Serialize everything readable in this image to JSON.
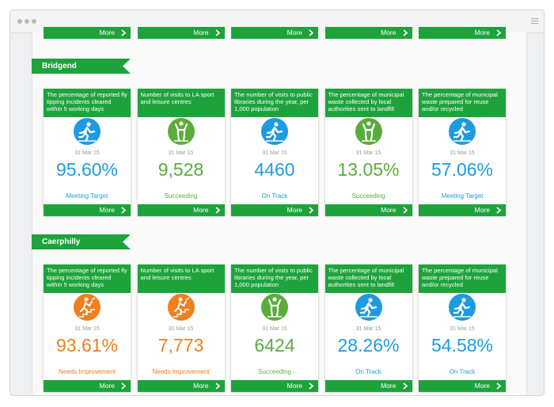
{
  "top_row_more": [
    "More",
    "More",
    "More",
    "More",
    "More"
  ],
  "sections": [
    {
      "name": "Bridgend",
      "cards": [
        {
          "title": "The percentage of reported fly tipping incidents cleared within 5 working days",
          "date": "31 Mar 15",
          "value": "95.60%",
          "status": "Meeting Target",
          "color": "#1e9be0",
          "more": "More"
        },
        {
          "title": "Number of visits to LA sport and leisure centres",
          "date": "31 Mar 15",
          "value": "9,528",
          "status": "Succeeding",
          "color": "#5cab3c",
          "more": "More"
        },
        {
          "title": "The number of visits to public libraries during the year, per 1,000 population",
          "date": "31 Mar 15",
          "value": "4460",
          "status": "On Track",
          "color": "#1e9be0",
          "more": "More"
        },
        {
          "title": "The percentage of municipal waste collected by local authorities sent to landfill",
          "date": "31 Mar 15",
          "value": "13.05%",
          "status": "Succeeding",
          "color": "#5cab3c",
          "more": "More"
        },
        {
          "title": "The percentage of municipal waste prepared for reuse and/or recycled",
          "date": "31 Mar 15",
          "value": "57.06%",
          "status": "Meeting Target",
          "color": "#1e9be0",
          "more": "More"
        }
      ]
    },
    {
      "name": "Caerphilly",
      "cards": [
        {
          "title": "The percentage of reported fly tipping incidents cleared within 5 working days",
          "date": "31 Mar 15",
          "value": "93.61%",
          "status": "Needs Improvement",
          "color": "#f07f1e",
          "more": "More"
        },
        {
          "title": "Number of visits to LA sport and leisure centres",
          "date": "31 Mar 15",
          "value": "7,773",
          "status": "Needs Improvement",
          "color": "#f07f1e",
          "more": "More"
        },
        {
          "title": "The number of visits to public libraries during the year, per 1,000 population",
          "date": "31 Mar 15",
          "value": "6424",
          "status": "Succeeding",
          "color": "#5cab3c",
          "more": "More"
        },
        {
          "title": "The percentage of municipal waste collected by local authorities sent to landfill",
          "date": "31 Mar 15",
          "value": "28.26%",
          "status": "On Track",
          "color": "#1e9be0",
          "more": "More"
        },
        {
          "title": "The percentage of municipal waste prepared for reuse and/or recycled",
          "date": "31 Mar 15",
          "value": "54.58%",
          "status": "On Track",
          "color": "#1e9be0",
          "more": "More"
        }
      ]
    }
  ]
}
